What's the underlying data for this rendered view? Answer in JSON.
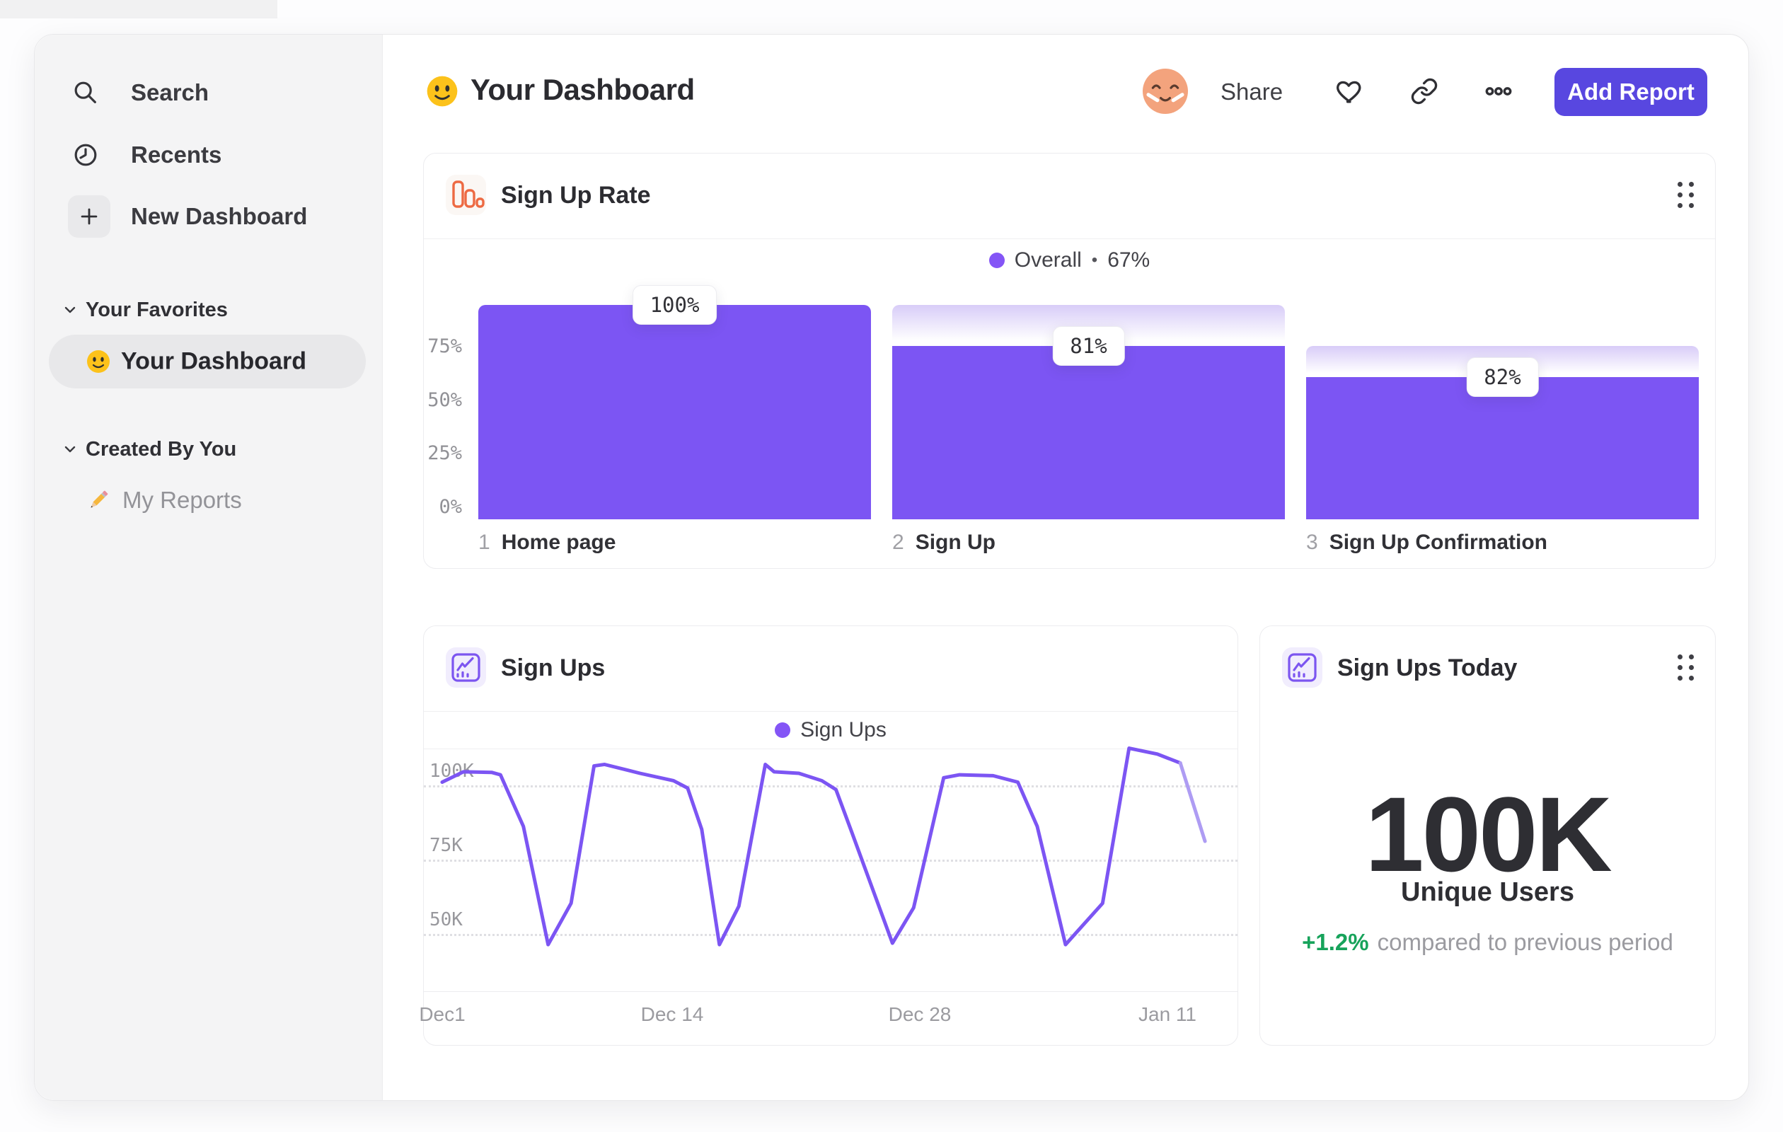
{
  "sidebar": {
    "nav": [
      {
        "label": "Search",
        "icon": "search-icon"
      },
      {
        "label": "Recents",
        "icon": "clock-icon"
      },
      {
        "label": "New Dashboard",
        "icon": "plus-icon"
      }
    ],
    "sections": [
      {
        "label": "Your Favorites",
        "items": [
          {
            "label": "Your Dashboard",
            "emoji": "slightly-smiling-face",
            "selected": true
          }
        ]
      },
      {
        "label": "Created By You",
        "items": [
          {
            "label": "My Reports",
            "emoji": "pencil",
            "selected": false
          }
        ]
      }
    ]
  },
  "header": {
    "emoji": "slightly-smiling-face",
    "title": "Your Dashboard",
    "share": "Share",
    "add_report": "Add Report"
  },
  "cards": {
    "signup_rate": {
      "title": "Sign Up Rate",
      "legend": {
        "series": "Overall",
        "sep": "•",
        "value": "67%"
      }
    },
    "signups": {
      "title": "Sign Ups",
      "legend": {
        "series": "Sign Ups"
      }
    },
    "signups_today": {
      "title": "Sign Ups Today",
      "value": "100K",
      "value_label": "Unique Users",
      "delta": "+1.2%",
      "delta_text": "compared to previous period"
    }
  },
  "chart_data": [
    {
      "type": "bar",
      "variant": "funnel",
      "title": "Sign Up Rate",
      "legend": [
        {
          "name": "Overall",
          "value": "67%"
        }
      ],
      "ylim": [
        0,
        100
      ],
      "y_ticks": [
        {
          "label": "75%",
          "pct": 75
        },
        {
          "label": "50%",
          "pct": 50
        },
        {
          "label": "25%",
          "pct": 25
        },
        {
          "label": "0%",
          "pct": 0
        }
      ],
      "steps": [
        {
          "index": "1",
          "label": "Home page",
          "badge": "100%",
          "conversion_pct": 100,
          "absolute_pct": 100,
          "cap_from_pct": 100
        },
        {
          "index": "2",
          "label": "Sign Up",
          "badge": "81%",
          "conversion_pct": 81,
          "absolute_pct": 81,
          "cap_from_pct": 100
        },
        {
          "index": "3",
          "label": "Sign Up Confirmation",
          "badge": "82%",
          "conversion_pct": 82,
          "absolute_pct": 66.4,
          "cap_from_pct": 81
        }
      ]
    },
    {
      "type": "line",
      "title": "Sign Ups",
      "series_name": "Sign Ups",
      "unit": "K users",
      "x_ticks": [
        {
          "label": "Dec1",
          "day": 0
        },
        {
          "label": "Dec 14",
          "day": 13
        },
        {
          "label": "Dec 28",
          "day": 27
        },
        {
          "label": "Jan 11",
          "day": 41
        }
      ],
      "y_ticks": [
        {
          "label": "100K",
          "value": 100
        },
        {
          "label": "75K",
          "value": 75
        },
        {
          "label": "50K",
          "value": 50
        }
      ],
      "points": [
        [
          0,
          101
        ],
        [
          1.2,
          104.5
        ],
        [
          2.8,
          104.3
        ],
        [
          3.3,
          103.5
        ],
        [
          4.6,
          86
        ],
        [
          6,
          46
        ],
        [
          7.3,
          60
        ],
        [
          8.6,
          106.5
        ],
        [
          9.2,
          107
        ],
        [
          11.2,
          104
        ],
        [
          13.1,
          101.5
        ],
        [
          13.9,
          99
        ],
        [
          14.7,
          85
        ],
        [
          15.7,
          46
        ],
        [
          16.8,
          59
        ],
        [
          18.3,
          107
        ],
        [
          18.8,
          104.5
        ],
        [
          20.2,
          104
        ],
        [
          21.5,
          101.5
        ],
        [
          22.3,
          98.5
        ],
        [
          23.2,
          84
        ],
        [
          25.5,
          46.5
        ],
        [
          26.7,
          58.5
        ],
        [
          28.4,
          102.5
        ],
        [
          29.3,
          103.5
        ],
        [
          31.2,
          103.2
        ],
        [
          32.6,
          101
        ],
        [
          33.7,
          86
        ],
        [
          35.3,
          46
        ],
        [
          37.4,
          60
        ],
        [
          38.9,
          112.5
        ],
        [
          40.5,
          110.5
        ],
        [
          41.8,
          107.5
        ],
        [
          43.2,
          81
        ]
      ],
      "incomplete_from": 32
    }
  ],
  "colors": {
    "accent_purple": "#7C55F3",
    "legend_dot": "#8455F6",
    "cap_gradient_top": "#D8CCF8",
    "add_report_bg": "#5847E0",
    "delta_green": "#17A35B",
    "funnel_icon_orange": "#ED6A43",
    "line_icon_purple": "#7C55F0",
    "avatar_bg": "#F3A37D",
    "incomplete_line": "#AE9CF3"
  }
}
